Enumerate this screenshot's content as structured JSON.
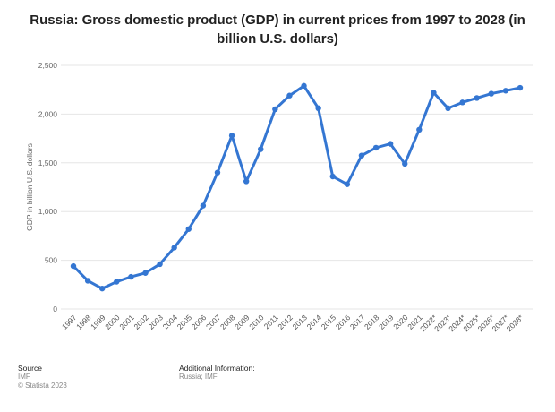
{
  "chart_data": {
    "type": "line",
    "title": "Russia: Gross domestic product (GDP) in current prices from 1997 to 2028 (in billion U.S. dollars)",
    "ylabel": "GDP in billion U.S. dollars",
    "xlabel": "",
    "ylim": [
      0,
      2500
    ],
    "yticks": [
      0,
      500,
      1000,
      1500,
      2000,
      2500
    ],
    "ytick_labels": [
      "0",
      "500",
      "1,000",
      "1,500",
      "2,000",
      "2,500"
    ],
    "grid": true,
    "categories": [
      "1997",
      "1998",
      "1999",
      "2000",
      "2001",
      "2002",
      "2003",
      "2004",
      "2005",
      "2006",
      "2007",
      "2008",
      "2009",
      "2010",
      "2011",
      "2012",
      "2013",
      "2014",
      "2015",
      "2016",
      "2017",
      "2018",
      "2019",
      "2020",
      "2021",
      "2022*",
      "2023*",
      "2024*",
      "2025*",
      "2026*",
      "2027*",
      "2028*"
    ],
    "series": [
      {
        "values": [
          440,
          290,
          210,
          280,
          330,
          370,
          460,
          630,
          820,
          1060,
          1400,
          1780,
          1310,
          1640,
          2050,
          2190,
          2290,
          2060,
          1360,
          1280,
          1575,
          1655,
          1695,
          1490,
          1840,
          2220,
          2060,
          2120,
          2165,
          2210,
          2240,
          2270
        ],
        "color": "#3476d2"
      }
    ]
  },
  "footer": {
    "source_heading": "Source",
    "source_line1": "IMF",
    "source_line2": "© Statista 2023",
    "additional_heading": "Additional Information:",
    "additional_line1": "Russia; IMF"
  }
}
